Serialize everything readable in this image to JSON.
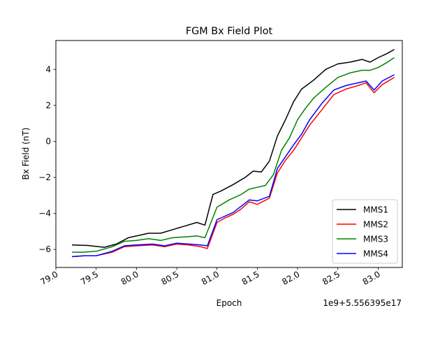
{
  "chart_data": {
    "type": "line",
    "title": "FGM Bx Field Plot",
    "xlabel": "Epoch",
    "ylabel": "Bx Field (nT)",
    "offset_text": "1e9+5.556395e17",
    "xlim": [
      79.0,
      83.3
    ],
    "ylim": [
      -7.0,
      5.6
    ],
    "x_ticks": [
      79.0,
      79.5,
      80.0,
      80.5,
      81.0,
      81.5,
      82.0,
      82.5,
      83.0
    ],
    "x_tick_labels": [
      "79.0",
      "79.5",
      "80.0",
      "80.5",
      "81.0",
      "81.5",
      "82.0",
      "82.5",
      "83.0"
    ],
    "y_ticks": [
      -6,
      -4,
      -2,
      0,
      2,
      4
    ],
    "y_tick_labels": [
      "−6",
      "−4",
      "−2",
      "0",
      "2",
      "4"
    ],
    "grid": false,
    "legend_position": "bottom-right",
    "series": [
      {
        "name": "MMS1",
        "color": "#000000",
        "points": [
          [
            79.2,
            -5.75
          ],
          [
            79.4,
            -5.78
          ],
          [
            79.6,
            -5.88
          ],
          [
            79.75,
            -5.7
          ],
          [
            79.9,
            -5.35
          ],
          [
            80.0,
            -5.25
          ],
          [
            80.15,
            -5.1
          ],
          [
            80.3,
            -5.1
          ],
          [
            80.45,
            -4.9
          ],
          [
            80.6,
            -4.7
          ],
          [
            80.75,
            -4.5
          ],
          [
            80.85,
            -4.65
          ],
          [
            80.95,
            -2.95
          ],
          [
            81.05,
            -2.75
          ],
          [
            81.2,
            -2.4
          ],
          [
            81.35,
            -2.0
          ],
          [
            81.45,
            -1.65
          ],
          [
            81.55,
            -1.7
          ],
          [
            81.65,
            -1.1
          ],
          [
            81.75,
            0.3
          ],
          [
            81.85,
            1.2
          ],
          [
            81.95,
            2.2
          ],
          [
            82.05,
            2.9
          ],
          [
            82.2,
            3.4
          ],
          [
            82.35,
            4.0
          ],
          [
            82.5,
            4.3
          ],
          [
            82.65,
            4.4
          ],
          [
            82.8,
            4.55
          ],
          [
            82.9,
            4.4
          ],
          [
            83.0,
            4.65
          ],
          [
            83.1,
            4.85
          ],
          [
            83.2,
            5.1
          ]
        ]
      },
      {
        "name": "MMS2",
        "color": "#ff0000",
        "points": [
          [
            79.2,
            -6.4
          ],
          [
            79.35,
            -6.35
          ],
          [
            79.5,
            -6.35
          ],
          [
            79.7,
            -6.15
          ],
          [
            79.85,
            -5.85
          ],
          [
            80.0,
            -5.8
          ],
          [
            80.2,
            -5.75
          ],
          [
            80.35,
            -5.85
          ],
          [
            80.5,
            -5.7
          ],
          [
            80.65,
            -5.75
          ],
          [
            80.8,
            -5.85
          ],
          [
            80.88,
            -5.95
          ],
          [
            81.0,
            -4.5
          ],
          [
            81.1,
            -4.25
          ],
          [
            81.2,
            -4.05
          ],
          [
            81.3,
            -3.75
          ],
          [
            81.4,
            -3.35
          ],
          [
            81.5,
            -3.5
          ],
          [
            81.65,
            -3.15
          ],
          [
            81.75,
            -1.75
          ],
          [
            81.85,
            -1.05
          ],
          [
            81.95,
            -0.5
          ],
          [
            82.05,
            0.2
          ],
          [
            82.15,
            0.9
          ],
          [
            82.3,
            1.75
          ],
          [
            82.45,
            2.6
          ],
          [
            82.6,
            2.9
          ],
          [
            82.75,
            3.1
          ],
          [
            82.85,
            3.25
          ],
          [
            82.95,
            2.7
          ],
          [
            83.05,
            3.15
          ],
          [
            83.2,
            3.55
          ]
        ]
      },
      {
        "name": "MMS3",
        "color": "#008000",
        "points": [
          [
            79.2,
            -6.15
          ],
          [
            79.35,
            -6.15
          ],
          [
            79.5,
            -6.1
          ],
          [
            79.7,
            -5.85
          ],
          [
            79.85,
            -5.55
          ],
          [
            80.0,
            -5.5
          ],
          [
            80.15,
            -5.4
          ],
          [
            80.3,
            -5.5
          ],
          [
            80.45,
            -5.35
          ],
          [
            80.6,
            -5.3
          ],
          [
            80.75,
            -5.25
          ],
          [
            80.85,
            -5.35
          ],
          [
            81.0,
            -3.65
          ],
          [
            81.15,
            -3.25
          ],
          [
            81.3,
            -2.95
          ],
          [
            81.4,
            -2.65
          ],
          [
            81.5,
            -2.55
          ],
          [
            81.6,
            -2.45
          ],
          [
            81.7,
            -1.85
          ],
          [
            81.8,
            -0.5
          ],
          [
            81.9,
            0.2
          ],
          [
            82.0,
            1.2
          ],
          [
            82.1,
            1.85
          ],
          [
            82.2,
            2.4
          ],
          [
            82.35,
            3.0
          ],
          [
            82.5,
            3.55
          ],
          [
            82.65,
            3.8
          ],
          [
            82.8,
            3.95
          ],
          [
            82.9,
            3.95
          ],
          [
            83.0,
            4.1
          ],
          [
            83.1,
            4.35
          ],
          [
            83.2,
            4.65
          ]
        ]
      },
      {
        "name": "MMS4",
        "color": "#0000ff",
        "points": [
          [
            79.2,
            -6.4
          ],
          [
            79.35,
            -6.35
          ],
          [
            79.5,
            -6.35
          ],
          [
            79.7,
            -6.1
          ],
          [
            79.85,
            -5.8
          ],
          [
            80.0,
            -5.75
          ],
          [
            80.2,
            -5.7
          ],
          [
            80.35,
            -5.8
          ],
          [
            80.5,
            -5.65
          ],
          [
            80.65,
            -5.7
          ],
          [
            80.8,
            -5.75
          ],
          [
            80.88,
            -5.8
          ],
          [
            81.0,
            -4.35
          ],
          [
            81.1,
            -4.15
          ],
          [
            81.2,
            -3.95
          ],
          [
            81.3,
            -3.6
          ],
          [
            81.4,
            -3.25
          ],
          [
            81.5,
            -3.3
          ],
          [
            81.65,
            -3.05
          ],
          [
            81.75,
            -1.5
          ],
          [
            81.85,
            -0.85
          ],
          [
            81.95,
            -0.2
          ],
          [
            82.05,
            0.4
          ],
          [
            82.15,
            1.2
          ],
          [
            82.3,
            2.1
          ],
          [
            82.45,
            2.85
          ],
          [
            82.6,
            3.1
          ],
          [
            82.75,
            3.25
          ],
          [
            82.85,
            3.35
          ],
          [
            82.95,
            2.85
          ],
          [
            83.05,
            3.35
          ],
          [
            83.2,
            3.7
          ]
        ]
      }
    ]
  }
}
